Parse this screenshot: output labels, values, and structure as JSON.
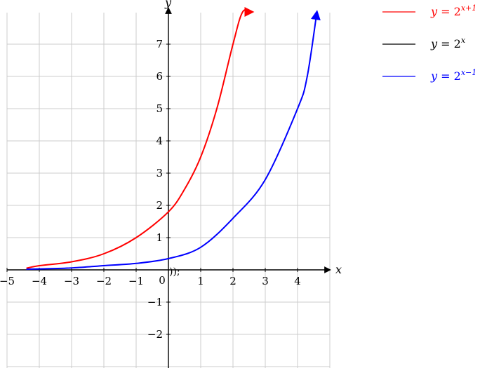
{
  "chart_data": {
    "type": "line",
    "title": "",
    "xlabel": "x",
    "ylabel": "y",
    "xlim": [
      -5,
      5
    ],
    "ylim": [
      -3,
      8
    ],
    "x_ticks": [
      -5,
      -4,
      -3,
      -2,
      -1,
      0,
      1,
      2,
      3,
      4
    ],
    "y_ticks": [
      -2,
      -1,
      1,
      2,
      3,
      4,
      5,
      6,
      7
    ],
    "origin_label": "0",
    "grid": true,
    "legend_position": "top-right, outside plot",
    "stray_text": "));",
    "series": [
      {
        "name": "y = 2^(x+1)",
        "legend": {
          "lhs": "y",
          "eq": " = 2",
          "exp": "x+1"
        },
        "color": "#ff0000",
        "drawn": true,
        "x": [
          -4.4,
          -4,
          -3,
          -2,
          -1,
          0,
          0.5,
          1,
          1.5,
          2,
          2.3,
          2.6
        ],
        "y": [
          0.05,
          0.13,
          0.25,
          0.5,
          1.0,
          1.8,
          2.5,
          3.5,
          5.0,
          7.0,
          8.0,
          8.0
        ]
      },
      {
        "name": "y = 2^x",
        "legend": {
          "lhs": "y",
          "eq": " = 2",
          "exp": "x"
        },
        "color": "#000000",
        "drawn": false,
        "x": [],
        "y": []
      },
      {
        "name": "y = 2^(x-1)",
        "legend": {
          "lhs": "y",
          "eq": " = 2",
          "exp": "x−1"
        },
        "color": "#0000ff",
        "drawn": true,
        "x": [
          -4.4,
          -4,
          -3,
          -2,
          -1,
          0,
          1,
          2,
          3,
          4,
          4.3,
          4.6
        ],
        "y": [
          0.02,
          0.03,
          0.06,
          0.13,
          0.2,
          0.35,
          0.7,
          1.6,
          2.8,
          5.0,
          6.0,
          8.0
        ]
      }
    ]
  }
}
